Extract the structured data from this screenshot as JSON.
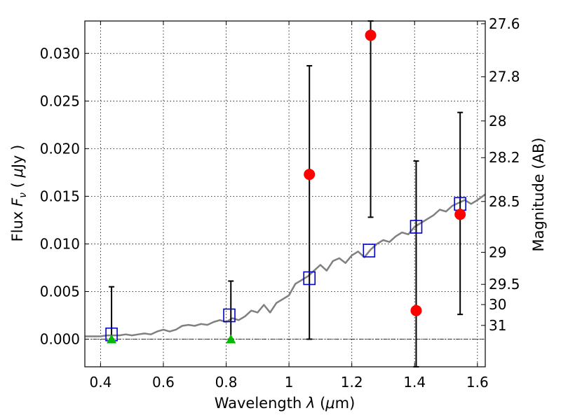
{
  "chart_data": {
    "type": "scatter",
    "xlabel": "Wavelength  λ (μm)",
    "ylabel": "Flux  F_ν  ( μJy )",
    "ylabel_parts": {
      "pre": "Flux  ",
      "italic": "F",
      "sub": "ν",
      "mid": "  ( ",
      "mu": "μ",
      "post": "Jy )"
    },
    "xlabel_parts": {
      "pre": "Wavelength  ",
      "lambda": "λ",
      "open": " (",
      "mu": "μ",
      "post": "m)"
    },
    "y2label": "Magnitude (AB)",
    "xlim": [
      0.35,
      1.625
    ],
    "ylim": [
      -0.0029,
      0.0334
    ],
    "grid": true,
    "x_ticks": [
      {
        "value": 0.4,
        "label": "0.4"
      },
      {
        "value": 0.6,
        "label": "0.6"
      },
      {
        "value": 0.8,
        "label": "0.8"
      },
      {
        "value": 1.0,
        "label": "1"
      },
      {
        "value": 1.2,
        "label": "1.2"
      },
      {
        "value": 1.4,
        "label": "1.4"
      },
      {
        "value": 1.6,
        "label": "1.6"
      }
    ],
    "y_ticks": [
      {
        "value": 0.0,
        "label": "0.000"
      },
      {
        "value": 0.005,
        "label": "0.005"
      },
      {
        "value": 0.01,
        "label": "0.010"
      },
      {
        "value": 0.015,
        "label": "0.015"
      },
      {
        "value": 0.02,
        "label": "0.020"
      },
      {
        "value": 0.025,
        "label": "0.025"
      },
      {
        "value": 0.03,
        "label": "0.030"
      }
    ],
    "magnitude_ticks": [
      {
        "value": 27.6,
        "label": "27.6"
      },
      {
        "value": 27.8,
        "label": "27.8"
      },
      {
        "value": 28.0,
        "label": "28"
      },
      {
        "value": 28.2,
        "label": "28.2"
      },
      {
        "value": 28.5,
        "label": "28.5"
      },
      {
        "value": 29.0,
        "label": "29"
      },
      {
        "value": 29.5,
        "label": "29.5"
      },
      {
        "value": 30.0,
        "label": "30"
      },
      {
        "value": 31.0,
        "label": "31"
      }
    ],
    "series": [
      {
        "marker": "line",
        "color": "#808080",
        "x": [
          0.35,
          0.38,
          0.4,
          0.42,
          0.44,
          0.46,
          0.48,
          0.5,
          0.52,
          0.54,
          0.56,
          0.58,
          0.6,
          0.62,
          0.64,
          0.66,
          0.68,
          0.7,
          0.72,
          0.74,
          0.76,
          0.78,
          0.8,
          0.82,
          0.84,
          0.86,
          0.88,
          0.9,
          0.92,
          0.94,
          0.96,
          0.98,
          1.0,
          1.02,
          1.04,
          1.06,
          1.08,
          1.1,
          1.12,
          1.14,
          1.16,
          1.18,
          1.2,
          1.22,
          1.24,
          1.26,
          1.28,
          1.3,
          1.32,
          1.34,
          1.36,
          1.38,
          1.4,
          1.42,
          1.44,
          1.46,
          1.48,
          1.5,
          1.52,
          1.54,
          1.56,
          1.58,
          1.6,
          1.625
        ],
        "y": [
          0.0003,
          0.0003,
          0.0003,
          0.0004,
          0.0004,
          0.0004,
          0.0005,
          0.0004,
          0.0005,
          0.0006,
          0.0005,
          0.0008,
          0.001,
          0.0008,
          0.001,
          0.0014,
          0.0015,
          0.0014,
          0.0016,
          0.0015,
          0.0018,
          0.002,
          0.0018,
          0.0022,
          0.002,
          0.0024,
          0.003,
          0.0028,
          0.0036,
          0.0028,
          0.0038,
          0.0042,
          0.0046,
          0.0058,
          0.0062,
          0.0066,
          0.0072,
          0.0078,
          0.0072,
          0.0082,
          0.0085,
          0.008,
          0.0088,
          0.0092,
          0.0086,
          0.0094,
          0.01,
          0.0104,
          0.0102,
          0.0108,
          0.0112,
          0.011,
          0.0118,
          0.0122,
          0.0126,
          0.013,
          0.0136,
          0.0134,
          0.014,
          0.0143,
          0.0146,
          0.0142,
          0.0146,
          0.0152
        ]
      },
      {
        "marker": "open-square",
        "color": "#0000cc",
        "x": [
          0.435,
          0.81,
          1.065,
          1.255,
          1.405,
          1.545
        ],
        "y": [
          0.0005,
          0.0025,
          0.0064,
          0.0093,
          0.0118,
          0.0142
        ]
      },
      {
        "marker": "filled-circle",
        "color": "#ff0000",
        "x": [
          1.065,
          1.26,
          1.405,
          1.545
        ],
        "y": [
          0.0173,
          0.0319,
          0.003,
          0.0131
        ],
        "yerr_low": [
          0.0,
          0.0128,
          -0.0029,
          0.0026
        ],
        "yerr_high": [
          0.0287,
          0.0334,
          0.0187,
          0.0238
        ]
      },
      {
        "marker": "filled-triangle",
        "color": "#00bb00",
        "x": [
          0.435,
          0.815
        ],
        "y": [
          0.0,
          0.0
        ],
        "yerr_low": [
          0.0,
          0.0
        ],
        "yerr_high": [
          0.0055,
          0.0061
        ]
      }
    ]
  }
}
